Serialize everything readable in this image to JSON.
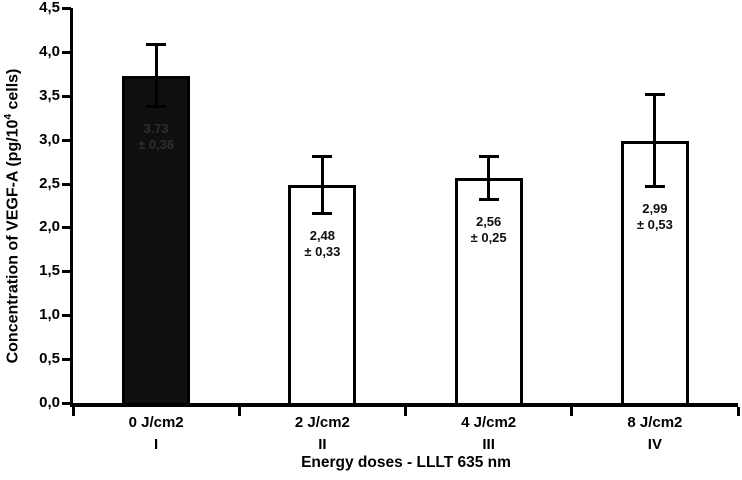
{
  "figure": {
    "background": "#ffffff",
    "axis_color": "#000000"
  },
  "chart_data": {
    "type": "bar",
    "title": "",
    "xlabel": "Energy doses - LLLT 635 nm",
    "ylabel": "Concentration of VEGF-A (pg/10⁴ cells)",
    "ylabel_parts": {
      "prefix": "Concentration of VEGF-A (pg/10",
      "superscript": "4",
      "suffix": " cells)"
    },
    "categories": [
      "0 J/cm2",
      "2 J/cm2",
      "4 J/cm2",
      "8 J/cm2"
    ],
    "group_numerals": [
      "I",
      "II",
      "III",
      "IV"
    ],
    "values": [
      3.73,
      2.48,
      2.56,
      2.99
    ],
    "errors": [
      0.36,
      0.33,
      0.25,
      0.53
    ],
    "value_labels": [
      [
        "3.73",
        "± 0,36"
      ],
      [
        "2,48",
        "± 0,33"
      ],
      [
        "2,56",
        "± 0,25"
      ],
      [
        "2,99",
        "± 0,53"
      ]
    ],
    "bar_fills": [
      "#0f0f0f",
      "#ffffff",
      "#ffffff",
      "#ffffff"
    ],
    "bar_label_colors": [
      "#2e2e2e",
      "#0f0f0f",
      "#0f0f0f",
      "#0f0f0f"
    ],
    "ytick_labels": [
      "0,0",
      "0,5",
      "1,0",
      "1,5",
      "2,0",
      "2,5",
      "3,0",
      "3,5",
      "4,0",
      "4,5"
    ],
    "ytick_values": [
      0,
      0.5,
      1,
      1.5,
      2,
      2.5,
      3,
      3.5,
      4,
      4.5
    ],
    "ylim": [
      0,
      4.5
    ],
    "grid": false,
    "legend": null
  }
}
